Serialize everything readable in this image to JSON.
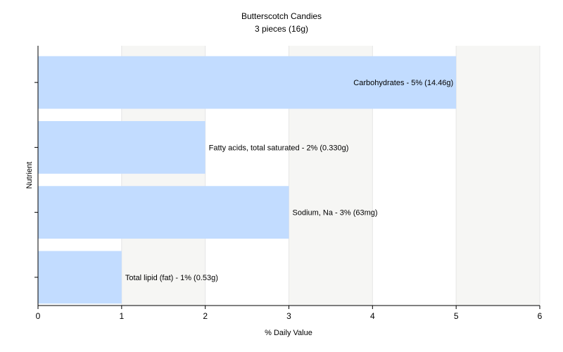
{
  "chart_data": {
    "type": "bar",
    "orientation": "horizontal",
    "title": "Butterscotch Candies",
    "subtitle": "3 pieces (16g)",
    "xlabel": "% Daily Value",
    "ylabel": "Nutrient",
    "xlim": [
      0,
      6
    ],
    "xticks": [
      "0",
      "1",
      "2",
      "3",
      "4",
      "5",
      "6"
    ],
    "grid": true,
    "legend": "none",
    "bar_color": "#c2dcff",
    "categories": [
      "Carbohydrates",
      "Fatty acids, total saturated",
      "Sodium, Na",
      "Total lipid (fat)"
    ],
    "values": [
      5,
      2,
      3,
      1
    ],
    "data_labels": [
      "Carbohydrates - 5% (14.46g)",
      "Fatty acids, total saturated - 2% (0.330g)",
      "Sodium, Na - 3% (63mg)",
      "Total lipid (fat) - 1% (0.53g)"
    ]
  }
}
